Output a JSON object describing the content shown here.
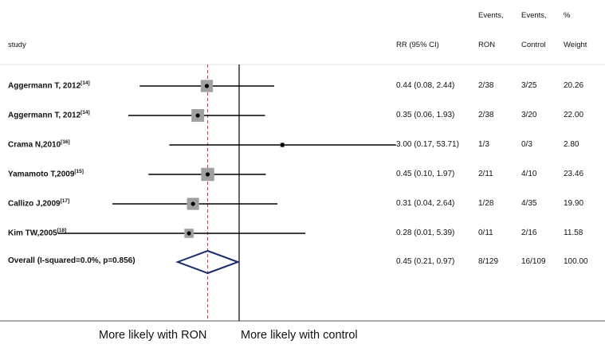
{
  "header": {
    "study": "study",
    "rr": "RR (95% CI)",
    "events_ron_top": "Events,",
    "events_ron_bottom": "RON",
    "events_ctrl_top": "Events,",
    "events_ctrl_bottom": "Control",
    "weight_top": "%",
    "weight_bottom": "Weight"
  },
  "footer": {
    "left": "More likely with RON",
    "right": "More likely with control"
  },
  "chart_data": {
    "type": "forest",
    "scale": "log",
    "null_value": 1,
    "reference_line": 0.45,
    "studies": [
      {
        "label": "Aggermann T, 2012",
        "ref": "[14]",
        "rr": 0.44,
        "lo": 0.08,
        "hi": 2.44,
        "rr_text": "0.44 (0.08, 2.44)",
        "ron": "2/38",
        "control": "3/25",
        "weight": "20.26",
        "weight_value": 20.26
      },
      {
        "label": "Aggermann T, 2012",
        "ref": "[14]",
        "rr": 0.35,
        "lo": 0.06,
        "hi": 1.93,
        "rr_text": "0.35 (0.06, 1.93)",
        "ron": "2/38",
        "control": "3/20",
        "weight": "22.00",
        "weight_value": 22.0
      },
      {
        "label": "Crama N,2010",
        "ref": "[16]",
        "rr": 3.0,
        "lo": 0.17,
        "hi": 53.71,
        "rr_text": "3.00 (0.17, 53.71)",
        "ron": "1/3",
        "control": "0/3",
        "weight": "2.80",
        "weight_value": 2.8
      },
      {
        "label": "Yamamoto T,2009",
        "ref": "[15]",
        "rr": 0.45,
        "lo": 0.1,
        "hi": 1.97,
        "rr_text": "0.45 (0.10, 1.97)",
        "ron": "2/11",
        "control": "4/10",
        "weight": "23.46",
        "weight_value": 23.46
      },
      {
        "label": "Callizo J,2009",
        "ref": "[17]",
        "rr": 0.31,
        "lo": 0.04,
        "hi": 2.64,
        "rr_text": "0.31 (0.04, 2.64)",
        "ron": "1/28",
        "control": "4/35",
        "weight": "19.90",
        "weight_value": 19.9
      },
      {
        "label": "Kim TW,2005",
        "ref": "[18]",
        "rr": 0.28,
        "lo": 0.01,
        "hi": 5.39,
        "rr_text": "0.28 (0.01, 5.39)",
        "ron": "0/11",
        "control": "2/16",
        "weight": "11.58",
        "weight_value": 11.58
      }
    ],
    "overall": {
      "label": "Overall (I-squared=0.0%, p=0.856)",
      "rr": 0.45,
      "lo": 0.21,
      "hi": 0.97,
      "rr_text": "0.45 (0.21, 0.97)",
      "ron": "8/129",
      "control": "16/109",
      "weight": "100.00"
    },
    "colors": {
      "line": "#000000",
      "box": "#a0a0a0",
      "diamond": "#1a2a6c",
      "reference": "#c0392b",
      "rule": "#d9d9d9"
    }
  }
}
